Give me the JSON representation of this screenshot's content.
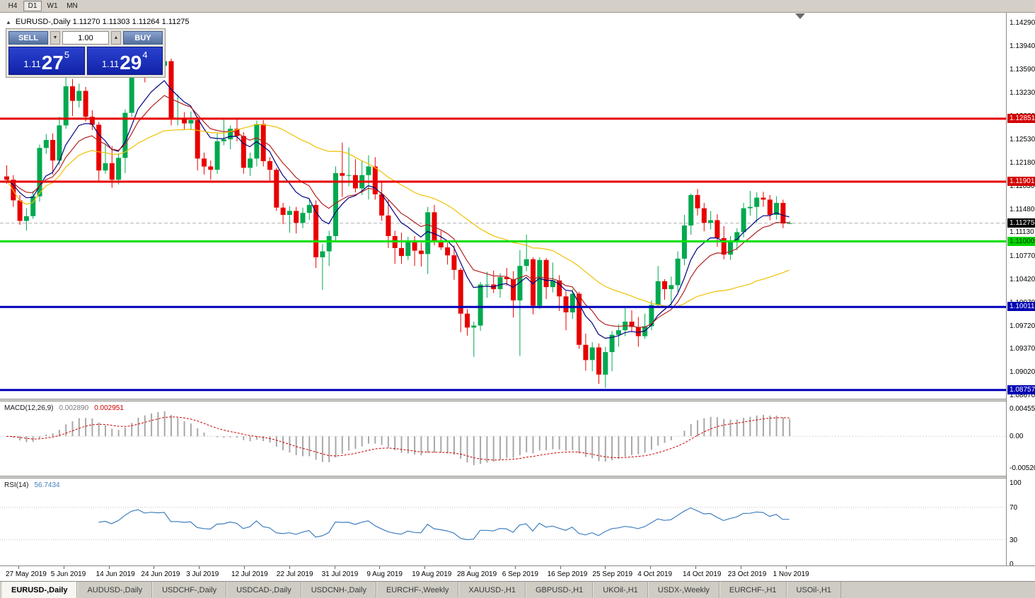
{
  "toolbar": {
    "timeframes": [
      "H4",
      "D1",
      "W1",
      "MN"
    ],
    "active": "D1"
  },
  "chart": {
    "title": "EURUSD-,Daily  1.11270 1.11303 1.11264 1.11275",
    "collapse_icon": "▲"
  },
  "one_click": {
    "sell_label": "SELL",
    "buy_label": "BUY",
    "volume": "1.00",
    "decrement_icon": "▼",
    "increment_icon": "▲",
    "sell_price": {
      "prefix": "1.11",
      "big": "27",
      "sup": "5"
    },
    "buy_price": {
      "prefix": "1.11",
      "big": "29",
      "sup": "4"
    }
  },
  "price_scale": {
    "labels": [
      "1.14290",
      "1.13940",
      "1.13590",
      "1.13230",
      "1.12880",
      "1.12530",
      "1.12180",
      "1.11830",
      "1.11480",
      "1.11130",
      "1.10770",
      "1.10420",
      "1.10070",
      "1.09720",
      "1.09370",
      "1.09020",
      "1.08670"
    ]
  },
  "bid": {
    "text": "1.11275",
    "value": 1.11275
  },
  "levels": [
    {
      "text": "1.12851",
      "value": 1.12851,
      "line_color": "#e60000",
      "box_color": "#d40000",
      "text_color": "#ffffff",
      "thickness": 3
    },
    {
      "text": "1.11901",
      "value": 1.11901,
      "line_color": "#e60000",
      "box_color": "#d40000",
      "text_color": "#ffffff",
      "thickness": 3
    },
    {
      "text": "1.11000",
      "value": 1.11,
      "line_color": "#00df00",
      "box_color": "#00d400",
      "text_color": "#003300",
      "thickness": 3
    },
    {
      "text": "1.10011",
      "value": 1.10011,
      "line_color": "#0000bb",
      "box_color": "#0000b4",
      "text_color": "#ffffff",
      "thickness": 3
    },
    {
      "text": "1.08757",
      "value": 1.08757,
      "line_color": "#0000bb",
      "box_color": "#0000b4",
      "text_color": "#ffffff",
      "thickness": 3
    }
  ],
  "time_axis": {
    "labels": [
      "27 May 2019",
      "5 Jun 2019",
      "14 Jun 2019",
      "24 Jun 2019",
      "3 Jul 2019",
      "12 Jul 2019",
      "22 Jul 2019",
      "31 Jul 2019",
      "9 Aug 2019",
      "19 Aug 2019",
      "28 Aug 2019",
      "6 Sep 2019",
      "16 Sep 2019",
      "25 Sep 2019",
      "4 Oct 2019",
      "14 Oct 2019",
      "23 Oct 2019",
      "1 Nov 2019"
    ]
  },
  "indicators": {
    "macd": {
      "label": "MACD(12,26,9)",
      "value_main": "0.002890",
      "value_signal": "0.002951",
      "scale": [
        {
          "text": "0.0045536",
          "value": 0.0045536
        },
        {
          "text": "0.00",
          "value": 0
        },
        {
          "text": "-0.0052050",
          "value": -0.005205
        }
      ],
      "histogram_color": "#a8a8a8",
      "signal_color": "#cc0000"
    },
    "rsi": {
      "label": "RSI(14)",
      "value": "56.7434",
      "period": 14,
      "scale": [
        {
          "text": "100",
          "value": 100
        },
        {
          "text": "70",
          "value": 70
        },
        {
          "text": "30",
          "value": 30
        },
        {
          "text": "0",
          "value": 0
        }
      ],
      "level_lines": [
        70,
        30
      ],
      "line_color": "#3f7fbf"
    }
  },
  "tabs": [
    {
      "label": "EURUSD-,Daily",
      "active": true
    },
    {
      "label": "AUDUSD-,Daily",
      "active": false
    },
    {
      "label": "USDCHF-,Daily",
      "active": false
    },
    {
      "label": "USDCAD-,Daily",
      "active": false
    },
    {
      "label": "USDCNH-,Daily",
      "active": false
    },
    {
      "label": "EURCHF-,Weekly",
      "active": false
    },
    {
      "label": "XAUUSD-,H1",
      "active": false
    },
    {
      "label": "GBPUSD-,H1",
      "active": false
    },
    {
      "label": "UKOil-,H1",
      "active": false
    },
    {
      "label": "USDX-,Weekly",
      "active": false
    },
    {
      "label": "EURCHF-,H1",
      "active": false
    },
    {
      "label": "USOil-,H1",
      "active": false
    }
  ],
  "chart_data": {
    "type": "candlestick",
    "symbol": "EURUSD-",
    "timeframe": "Daily",
    "title": "EURUSD-,Daily",
    "current_ohlc": {
      "open": 1.1127,
      "high": 1.11303,
      "low": 1.11264,
      "close": 1.11275
    },
    "y_axis_range": [
      1.0863,
      1.1445
    ],
    "x_axis_labels": [
      "27 May 2019",
      "5 Jun 2019",
      "14 Jun 2019",
      "24 Jun 2019",
      "3 Jul 2019",
      "12 Jul 2019",
      "22 Jul 2019",
      "31 Jul 2019",
      "9 Aug 2019",
      "19 Aug 2019",
      "28 Aug 2019",
      "6 Sep 2019",
      "16 Sep 2019",
      "25 Sep 2019",
      "4 Oct 2019",
      "14 Oct 2019",
      "23 Oct 2019",
      "1 Nov 2019"
    ],
    "colors": {
      "up": "#00a94f",
      "down": "#e80000",
      "background": "#ffffff"
    },
    "moving_averages": [
      {
        "period": 8,
        "method": "ema",
        "color": "#000080"
      },
      {
        "period": 13,
        "method": "ema",
        "color": "#b22222"
      },
      {
        "period": 34,
        "method": "sma",
        "color": "#f0c000"
      }
    ],
    "horizontal_lines": [
      1.12851,
      1.11901,
      1.11,
      1.10011,
      1.08757
    ],
    "candles": [
      [
        1.1198,
        1.1215,
        1.1187,
        1.1193
      ],
      [
        1.1193,
        1.12,
        1.1152,
        1.1162
      ],
      [
        1.1162,
        1.117,
        1.1125,
        1.1131
      ],
      [
        1.1131,
        1.115,
        1.1116,
        1.1138
      ],
      [
        1.1138,
        1.1176,
        1.1134,
        1.1168
      ],
      [
        1.1168,
        1.1246,
        1.116,
        1.1241
      ],
      [
        1.1241,
        1.1262,
        1.1232,
        1.1253
      ],
      [
        1.1253,
        1.1263,
        1.1201,
        1.1222
      ],
      [
        1.1222,
        1.1288,
        1.1215,
        1.1275
      ],
      [
        1.1275,
        1.1348,
        1.127,
        1.1334
      ],
      [
        1.1334,
        1.1345,
        1.1289,
        1.1312
      ],
      [
        1.1312,
        1.1338,
        1.1302,
        1.1327
      ],
      [
        1.1327,
        1.1333,
        1.1281,
        1.1288
      ],
      [
        1.1288,
        1.1298,
        1.1268,
        1.1276
      ],
      [
        1.1276,
        1.128,
        1.119,
        1.1207
      ],
      [
        1.1207,
        1.1248,
        1.1202,
        1.1218
      ],
      [
        1.1218,
        1.1244,
        1.1181,
        1.1193
      ],
      [
        1.1193,
        1.1233,
        1.1186,
        1.1226
      ],
      [
        1.1226,
        1.1299,
        1.1203,
        1.1294
      ],
      [
        1.1294,
        1.137,
        1.1288,
        1.136
      ],
      [
        1.136,
        1.1395,
        1.1355,
        1.139
      ],
      [
        1.139,
        1.1394,
        1.134,
        1.1358
      ],
      [
        1.1358,
        1.1391,
        1.1347,
        1.137
      ],
      [
        1.137,
        1.1389,
        1.1351,
        1.1365
      ],
      [
        1.1365,
        1.1387,
        1.1358,
        1.1372
      ],
      [
        1.1372,
        1.1376,
        1.1275,
        1.1285
      ],
      [
        1.1285,
        1.1322,
        1.1275,
        1.1286
      ],
      [
        1.1286,
        1.1295,
        1.1268,
        1.1278
      ],
      [
        1.1278,
        1.1296,
        1.1268,
        1.1283
      ],
      [
        1.1283,
        1.1288,
        1.1207,
        1.1225
      ],
      [
        1.1225,
        1.1234,
        1.1201,
        1.1213
      ],
      [
        1.1213,
        1.1222,
        1.1193,
        1.1208
      ],
      [
        1.1208,
        1.1264,
        1.1202,
        1.1251
      ],
      [
        1.1251,
        1.1286,
        1.1245,
        1.1254
      ],
      [
        1.1254,
        1.1275,
        1.1239,
        1.127
      ],
      [
        1.127,
        1.1284,
        1.1251,
        1.1259
      ],
      [
        1.1259,
        1.1265,
        1.1202,
        1.1211
      ],
      [
        1.1211,
        1.1234,
        1.1199,
        1.1225
      ],
      [
        1.1225,
        1.1282,
        1.1213,
        1.1277
      ],
      [
        1.1277,
        1.1283,
        1.1213,
        1.1221
      ],
      [
        1.1221,
        1.1227,
        1.1192,
        1.1208
      ],
      [
        1.1208,
        1.1211,
        1.1146,
        1.1151
      ],
      [
        1.1151,
        1.1158,
        1.1126,
        1.114
      ],
      [
        1.114,
        1.1153,
        1.1113,
        1.1146
      ],
      [
        1.1146,
        1.1152,
        1.1112,
        1.1128
      ],
      [
        1.1128,
        1.1151,
        1.112,
        1.1143
      ],
      [
        1.1143,
        1.1162,
        1.1132,
        1.1155
      ],
      [
        1.1155,
        1.1162,
        1.106,
        1.1076
      ],
      [
        1.1076,
        1.1096,
        1.1027,
        1.1085
      ],
      [
        1.1085,
        1.1116,
        1.1063,
        1.1108
      ],
      [
        1.1108,
        1.1213,
        1.1101,
        1.1203
      ],
      [
        1.1203,
        1.1249,
        1.1167,
        1.1199
      ],
      [
        1.1199,
        1.1242,
        1.1183,
        1.12
      ],
      [
        1.12,
        1.1224,
        1.1174,
        1.118
      ],
      [
        1.118,
        1.1222,
        1.117,
        1.12
      ],
      [
        1.12,
        1.123,
        1.1163,
        1.1213
      ],
      [
        1.1213,
        1.1227,
        1.1163,
        1.1171
      ],
      [
        1.1171,
        1.119,
        1.1131,
        1.1139
      ],
      [
        1.1139,
        1.1163,
        1.109,
        1.1108
      ],
      [
        1.1108,
        1.1116,
        1.1066,
        1.109
      ],
      [
        1.109,
        1.1113,
        1.1066,
        1.1078
      ],
      [
        1.1078,
        1.1107,
        1.1072,
        1.11
      ],
      [
        1.11,
        1.1108,
        1.1063,
        1.1086
      ],
      [
        1.1086,
        1.1098,
        1.1062,
        1.1081
      ],
      [
        1.1081,
        1.1152,
        1.1051,
        1.1144
      ],
      [
        1.1144,
        1.1155,
        1.1094,
        1.1101
      ],
      [
        1.1101,
        1.1116,
        1.1087,
        1.1091
      ],
      [
        1.1091,
        1.1098,
        1.1065,
        1.1079
      ],
      [
        1.1079,
        1.1094,
        1.1042,
        1.1057
      ],
      [
        1.1057,
        1.106,
        1.0963,
        1.0991
      ],
      [
        1.0991,
        1.0998,
        1.0958,
        1.097
      ],
      [
        1.097,
        1.0979,
        1.0926,
        1.0973
      ],
      [
        1.0973,
        1.1039,
        1.0965,
        1.1035
      ],
      [
        1.1035,
        1.1054,
        1.1015,
        1.1035
      ],
      [
        1.1035,
        1.1056,
        1.1022,
        1.1028
      ],
      [
        1.1028,
        1.1052,
        1.1015,
        1.1046
      ],
      [
        1.1046,
        1.106,
        1.1033,
        1.1043
      ],
      [
        1.1043,
        1.1055,
        1.0985,
        1.1011
      ],
      [
        1.1011,
        1.1087,
        1.0927,
        1.1063
      ],
      [
        1.1063,
        1.111,
        1.1055,
        1.1073
      ],
      [
        1.1073,
        1.1076,
        1.099,
        1.1003
      ],
      [
        1.1003,
        1.1076,
        1.0998,
        1.1072
      ],
      [
        1.1072,
        1.1075,
        1.1013,
        1.1031
      ],
      [
        1.1031,
        1.1068,
        1.1023,
        1.1041
      ],
      [
        1.1041,
        1.1049,
        1.0995,
        1.1017
      ],
      [
        1.1017,
        1.1025,
        1.0966,
        1.0993
      ],
      [
        1.0993,
        1.1028,
        1.0983,
        1.1021
      ],
      [
        1.1021,
        1.1024,
        1.0938,
        1.0944
      ],
      [
        1.0944,
        1.0961,
        1.0905,
        1.0921
      ],
      [
        1.0921,
        1.0948,
        1.0904,
        1.094
      ],
      [
        1.094,
        1.0946,
        1.0885,
        1.0899
      ],
      [
        1.0899,
        1.0941,
        1.0879,
        1.0933
      ],
      [
        1.0933,
        1.0965,
        1.0904,
        1.0959
      ],
      [
        1.0959,
        1.0975,
        1.0941,
        1.0966
      ],
      [
        1.0966,
        1.0999,
        1.0957,
        1.0979
      ],
      [
        1.0979,
        1.0996,
        1.0963,
        1.0971
      ],
      [
        1.0971,
        1.0986,
        1.0941,
        1.0957
      ],
      [
        1.0957,
        1.0991,
        1.0953,
        1.0972
      ],
      [
        1.0972,
        1.1011,
        1.0966,
        1.1004
      ],
      [
        1.1004,
        1.1063,
        1.1,
        1.104
      ],
      [
        1.104,
        1.1043,
        1.1012,
        1.1028
      ],
      [
        1.1028,
        1.1047,
        1.1001,
        1.1034
      ],
      [
        1.1034,
        1.1085,
        1.1024,
        1.1074
      ],
      [
        1.1074,
        1.114,
        1.1064,
        1.1124
      ],
      [
        1.1124,
        1.1172,
        1.111,
        1.117
      ],
      [
        1.117,
        1.1179,
        1.1139,
        1.115
      ],
      [
        1.115,
        1.1158,
        1.1115,
        1.1128
      ],
      [
        1.1128,
        1.1146,
        1.1118,
        1.1132
      ],
      [
        1.1132,
        1.1141,
        1.1092,
        1.1105
      ],
      [
        1.1105,
        1.1123,
        1.1073,
        1.108
      ],
      [
        1.108,
        1.1108,
        1.1072,
        1.1099
      ],
      [
        1.1099,
        1.112,
        1.1087,
        1.1114
      ],
      [
        1.1114,
        1.1158,
        1.1106,
        1.115
      ],
      [
        1.115,
        1.1176,
        1.1139,
        1.1152
      ],
      [
        1.1152,
        1.1174,
        1.1128,
        1.1166
      ],
      [
        1.1166,
        1.1175,
        1.1152,
        1.1163
      ],
      [
        1.1163,
        1.117,
        1.1132,
        1.114
      ],
      [
        1.114,
        1.1168,
        1.1133,
        1.1158
      ],
      [
        1.1158,
        1.1163,
        1.112,
        1.1127
      ],
      [
        1.1127,
        1.11303,
        1.11264,
        1.11275
      ]
    ]
  }
}
